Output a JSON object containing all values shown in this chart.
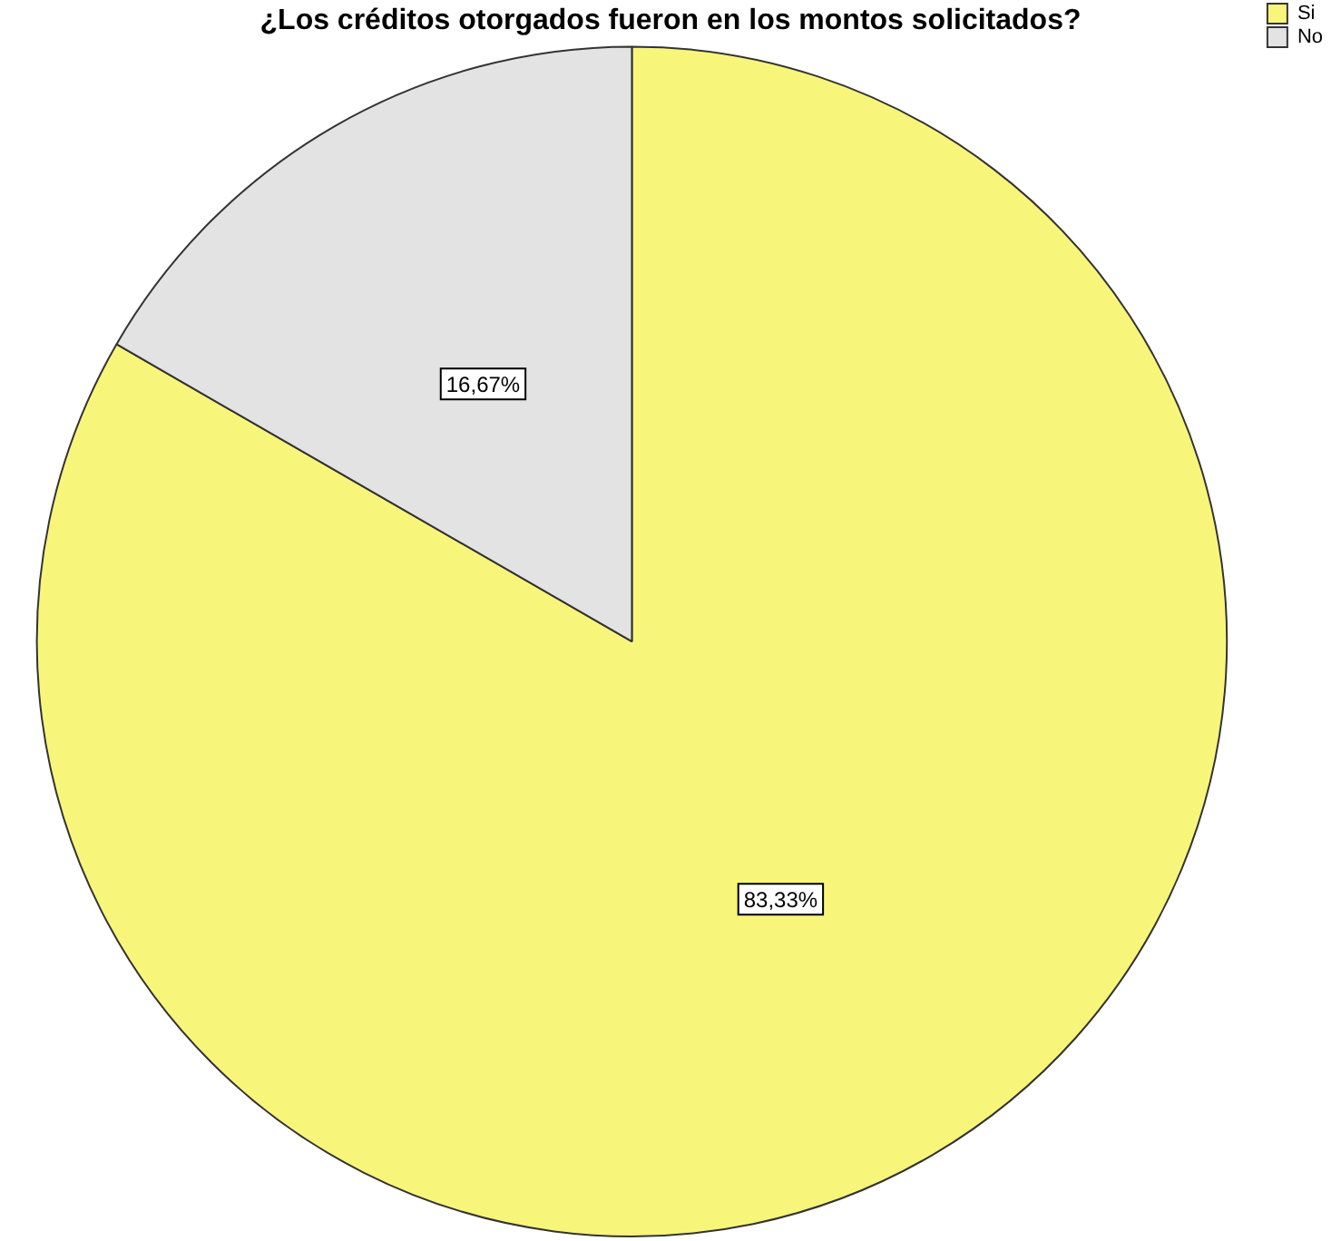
{
  "chart_data": {
    "type": "pie",
    "title": "¿Los créditos otorgados fueron en los montos solicitados?",
    "categories": [
      "Si",
      "No"
    ],
    "values": [
      83.33,
      16.67
    ],
    "value_labels": [
      "83,33%",
      "16,67%"
    ],
    "colors": [
      "#f8f67a",
      "#e3e3e3"
    ],
    "legend": "top right"
  }
}
